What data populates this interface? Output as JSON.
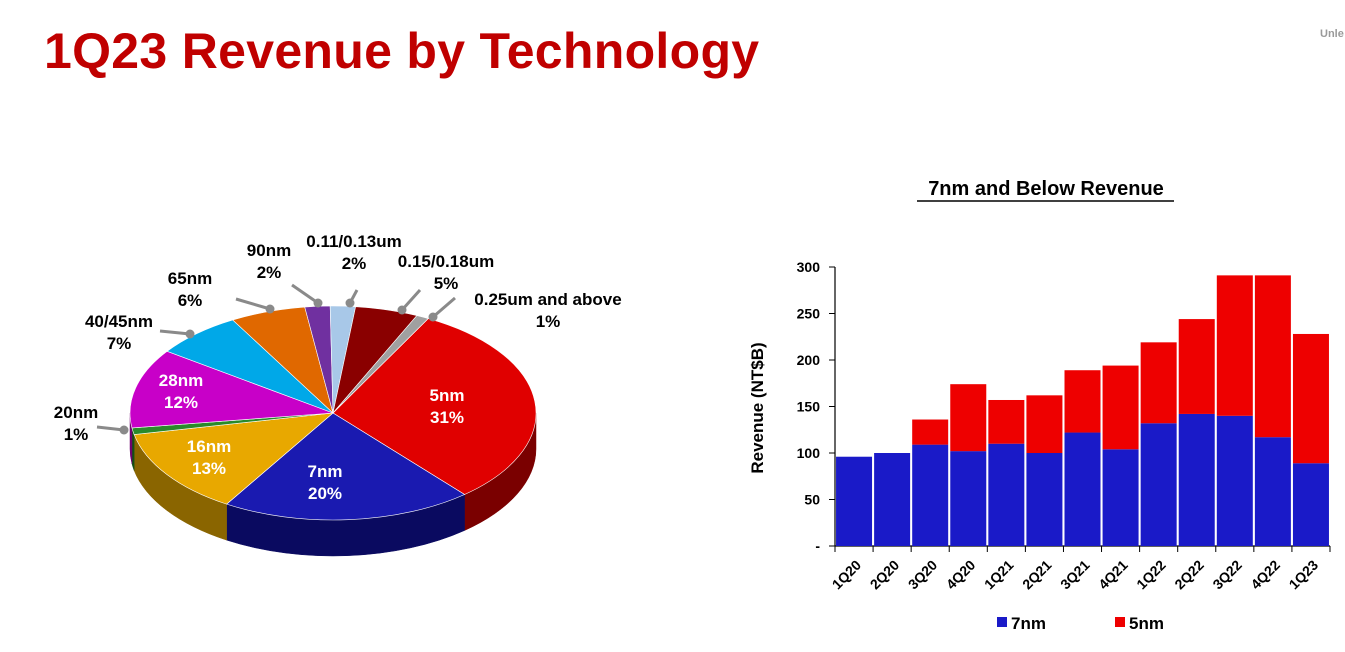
{
  "slide": {
    "title": "1Q23 Revenue by Technology",
    "corner_note": "Unle"
  },
  "chart_data": [
    {
      "type": "pie",
      "title": "",
      "slices": [
        {
          "label": "5nm",
          "value": 31,
          "value_label": "31%",
          "color": "#E00000",
          "side": "#7A0000"
        },
        {
          "label": "7nm",
          "value": 20,
          "value_label": "20%",
          "color": "#1A1AB0",
          "side": "#0A0A60"
        },
        {
          "label": "16nm",
          "value": 13,
          "value_label": "13%",
          "color": "#E8A800",
          "side": "#8A6500"
        },
        {
          "label": "20nm",
          "value": 1,
          "value_label": "1%",
          "color": "#2A8A2A",
          "side": "#145014"
        },
        {
          "label": "28nm",
          "value": 12,
          "value_label": "12%",
          "color": "#C800C8",
          "side": "#6E006E"
        },
        {
          "label": "40/45nm",
          "value": 7,
          "value_label": "7%",
          "color": "#00A8E8",
          "side": "#006088"
        },
        {
          "label": "65nm",
          "value": 6,
          "value_label": "6%",
          "color": "#E06800",
          "side": "#7A3A00"
        },
        {
          "label": "90nm",
          "value": 2,
          "value_label": "2%",
          "color": "#7030A0",
          "side": "#3C1860"
        },
        {
          "label": "0.11/0.13um",
          "value": 2,
          "value_label": "2%",
          "color": "#A8C8E8",
          "side": "#5A7890"
        },
        {
          "label": "0.15/0.18um",
          "value": 5,
          "value_label": "5%",
          "color": "#8A0000",
          "side": "#4A0000"
        },
        {
          "label": "0.25um and above",
          "value": 1,
          "value_label": "1%",
          "color": "#A0A0A0",
          "side": "#5A5A5A"
        }
      ]
    },
    {
      "type": "bar",
      "stacked": true,
      "title": "7nm and Below Revenue",
      "ylabel": "Revenue (NT$B)",
      "xlabel": "",
      "ylim": [
        0,
        300
      ],
      "yticks": [
        {
          "value": 0,
          "label": "-"
        },
        {
          "value": 50,
          "label": "50"
        },
        {
          "value": 100,
          "label": "100"
        },
        {
          "value": 150,
          "label": "150"
        },
        {
          "value": 200,
          "label": "200"
        },
        {
          "value": 250,
          "label": "250"
        },
        {
          "value": 300,
          "label": "300"
        }
      ],
      "categories": [
        "1Q20",
        "2Q20",
        "3Q20",
        "4Q20",
        "1Q21",
        "2Q21",
        "3Q21",
        "4Q21",
        "1Q22",
        "2Q22",
        "3Q22",
        "4Q22",
        "1Q23"
      ],
      "series": [
        {
          "name": "7nm",
          "color": "#1A1AC8",
          "values": [
            96,
            100,
            109,
            102,
            110,
            100,
            122,
            104,
            132,
            142,
            140,
            117,
            89
          ]
        },
        {
          "name": "5nm",
          "color": "#EE0000",
          "values": [
            0,
            0,
            27,
            72,
            47,
            62,
            67,
            90,
            87,
            102,
            151,
            174,
            139
          ]
        }
      ],
      "legend_position": "bottom"
    }
  ]
}
